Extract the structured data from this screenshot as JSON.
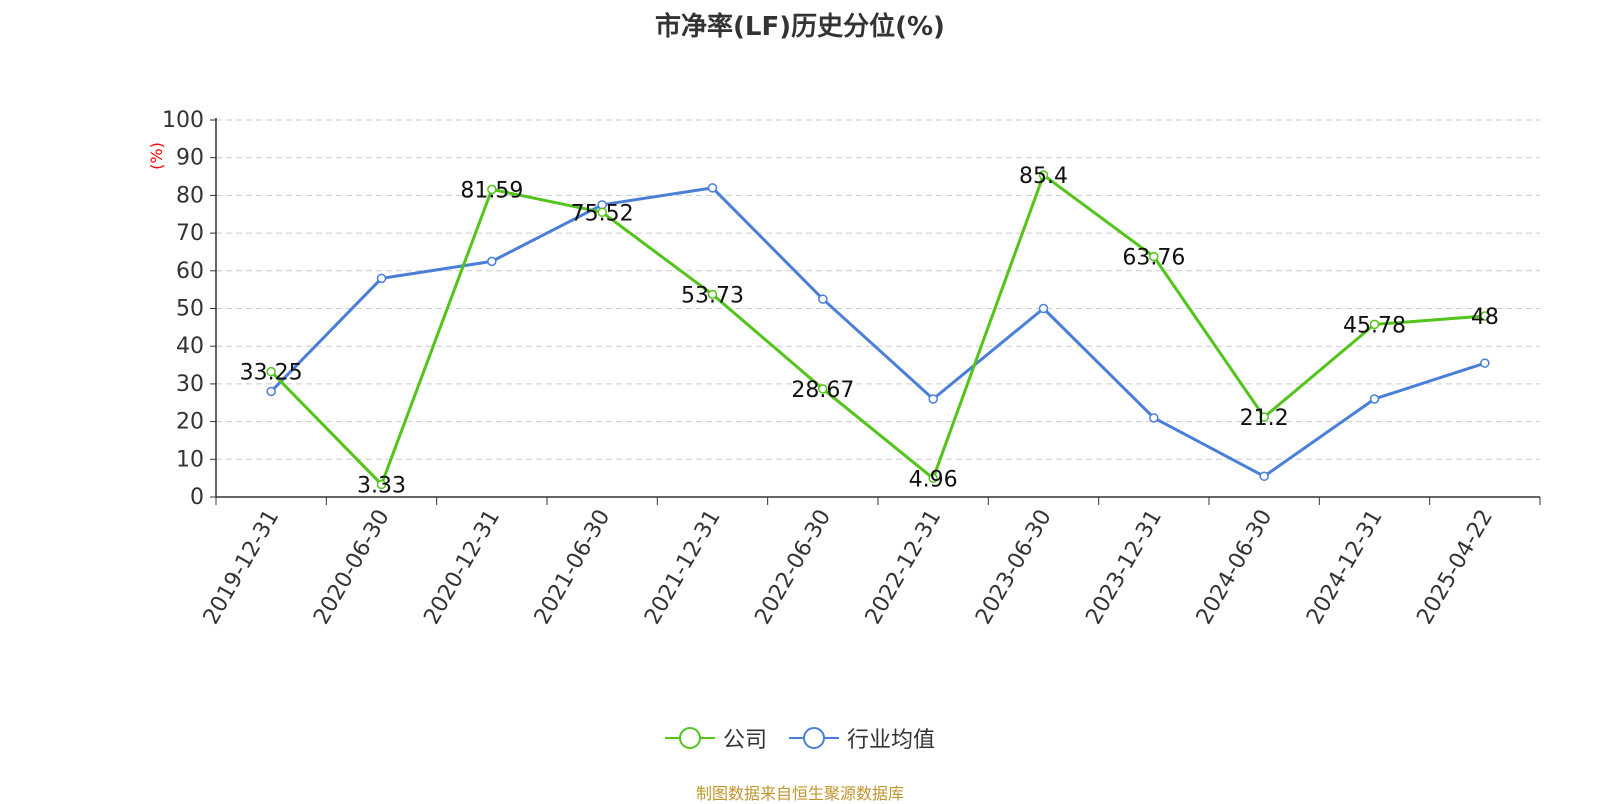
{
  "title": "市净率(LF)历史分位(%)",
  "source": "制图数据来自恒生聚源数据库",
  "legend": {
    "company_label": "公司",
    "industry_label": "行业均值"
  },
  "colors": {
    "company": "#52c41a",
    "industry": "#4a7fd9",
    "axis": "#333333",
    "grid": "#cccccc",
    "ylabel": "#ff0000",
    "source": "#c0962e"
  },
  "chart_data": {
    "type": "line",
    "title": "市净率(LF)历史分位(%)",
    "ylabel": "(%)",
    "xlabel": "",
    "ylim": [
      0,
      100
    ],
    "yticks": [
      0,
      10,
      20,
      30,
      40,
      50,
      60,
      70,
      80,
      90,
      100
    ],
    "grid": true,
    "legend_position": "bottom-center",
    "categories": [
      "2019-12-31",
      "2020-06-30",
      "2020-12-31",
      "2021-06-30",
      "2021-12-31",
      "2022-06-30",
      "2022-12-31",
      "2023-06-30",
      "2023-12-31",
      "2024-06-30",
      "2024-12-31",
      "2025-04-22"
    ],
    "series": [
      {
        "name": "公司",
        "color": "#52c41a",
        "values": [
          33.25,
          3.33,
          81.59,
          75.52,
          53.73,
          28.67,
          4.96,
          85.4,
          63.76,
          21.2,
          45.78,
          48
        ],
        "labels": [
          "33.25",
          "3.33",
          "81.59",
          "75.52",
          "53.73",
          "28.67",
          "4.96",
          "85.4",
          "63.76",
          "21.2",
          "45.78",
          "48"
        ]
      },
      {
        "name": "行业均值",
        "color": "#4a7fd9",
        "values": [
          28,
          58,
          62.5,
          77.5,
          82,
          52.5,
          26,
          50,
          21,
          5.5,
          26,
          35.5
        ]
      }
    ]
  }
}
